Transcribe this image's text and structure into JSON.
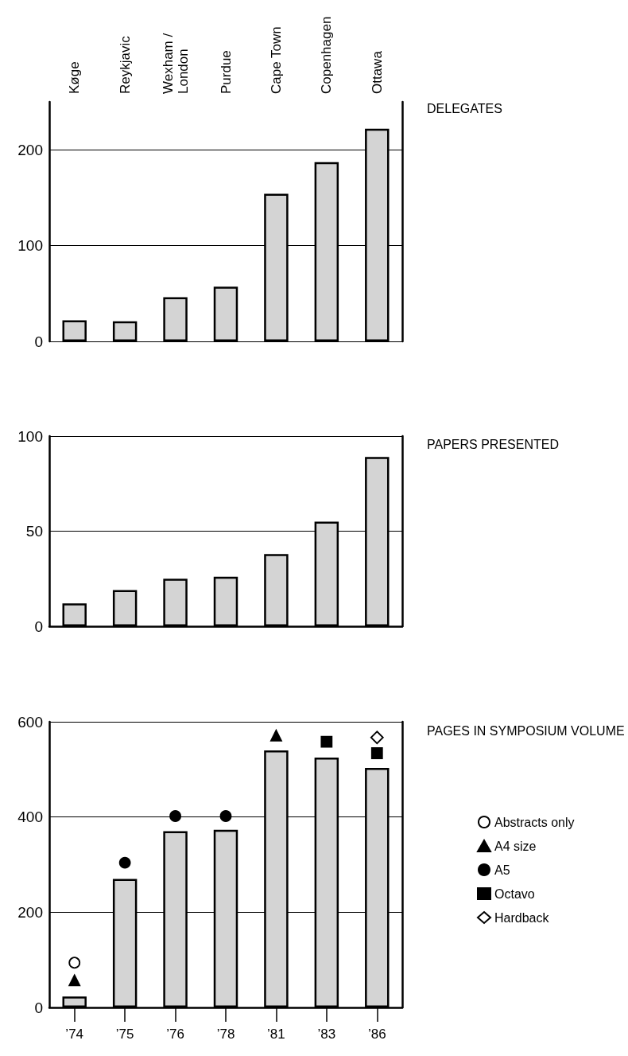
{
  "chart_data": [
    {
      "type": "bar",
      "ylabel": "DELEGATES",
      "categories": [
        "Køge",
        "Reykjavic",
        "Wexham /\nLondon",
        "Purdue",
        "Cape Town",
        "Copenhagen",
        "Ottawa"
      ],
      "values": [
        22,
        21,
        46,
        57,
        154,
        187,
        222
      ],
      "color": "#d4d4d4",
      "ylim": [
        0,
        250
      ],
      "yticks": [
        0,
        100,
        200
      ],
      "grid": "y",
      "legend": false
    },
    {
      "type": "bar",
      "ylabel": "PAPERS PRESENTED",
      "categories": [
        null,
        null,
        null,
        null,
        null,
        null,
        null
      ],
      "values": [
        12,
        19,
        25,
        26,
        38,
        55,
        89
      ],
      "color": "#d4d4d4",
      "ylim": [
        0,
        100
      ],
      "yticks": [
        0,
        50,
        100
      ],
      "grid": "y",
      "legend": false
    },
    {
      "type": "bar",
      "ylabel": "PAGES IN SYMPOSIUM VOLUME",
      "categories": [
        "’74",
        "’75",
        "’76",
        "’78",
        "’81",
        "’83",
        "’86"
      ],
      "series": [
        {
          "type": "bar",
          "color": "#d4d4d4",
          "values": [
            23,
            270,
            370,
            373,
            540,
            525,
            503
          ]
        },
        {
          "type": "scatter",
          "name": "Abstracts only",
          "color": "#ffffff",
          "marker": "circle",
          "x": [
            "’74"
          ],
          "values": [
            94
          ]
        },
        {
          "type": "scatter",
          "name": "A4 size",
          "color": "#000000",
          "marker": "triangle",
          "x": [
            "’74",
            "’81"
          ],
          "values": [
            57,
            571
          ]
        },
        {
          "type": "scatter",
          "name": "A5",
          "color": "#000000",
          "marker": "circle",
          "x": [
            "’75",
            "’76",
            "’78"
          ],
          "values": [
            304,
            402,
            402
          ]
        },
        {
          "type": "scatter",
          "name": "Octavo",
          "color": "#000000",
          "marker": "square",
          "x": [
            "’83",
            "’86"
          ],
          "values": [
            558,
            534
          ]
        },
        {
          "type": "scatter",
          "name": "Hardback",
          "color": "#ffffff",
          "marker": "diamond",
          "x": [
            "’86"
          ],
          "values": [
            567
          ]
        }
      ],
      "ylim": [
        0,
        600
      ],
      "yticks": [
        0,
        200,
        400,
        600
      ],
      "grid": "y",
      "legend": "right"
    }
  ]
}
